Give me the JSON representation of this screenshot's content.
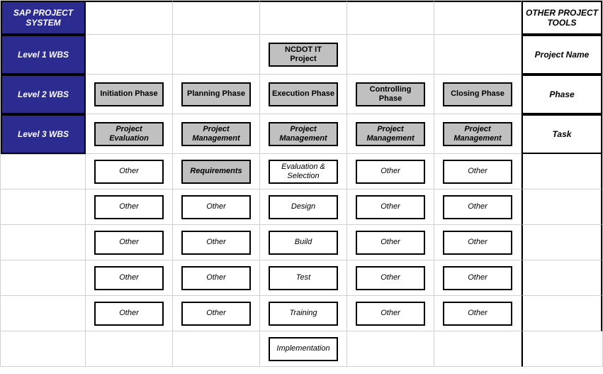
{
  "header": {
    "left": "SAP PROJECT SYSTEM",
    "right": "OTHER PROJECT TOOLS"
  },
  "levels": [
    {
      "label": "Level 1 WBS",
      "right_label": "Project Name",
      "cells": [
        null,
        null,
        {
          "text": "NCDOT IT Project",
          "style": "gray",
          "bold": true
        },
        null,
        null
      ]
    },
    {
      "label": "Level 2 WBS",
      "right_label": "Phase",
      "cells": [
        {
          "text": "Initiation Phase",
          "style": "gray",
          "bold": true
        },
        {
          "text": "Planning Phase",
          "style": "gray",
          "bold": true
        },
        {
          "text": "Execution Phase",
          "style": "gray",
          "bold": true
        },
        {
          "text": "Controlling Phase",
          "style": "gray",
          "bold": true
        },
        {
          "text": "Closing Phase",
          "style": "gray",
          "bold": true
        }
      ]
    },
    {
      "label": "Level 3 WBS",
      "right_label": "Task",
      "cells": [
        {
          "text": "Project Evaluation",
          "style": "gray",
          "italic": true
        },
        {
          "text": "Project Management",
          "style": "gray",
          "italic": true
        },
        {
          "text": "Project Management",
          "style": "gray",
          "italic": true
        },
        {
          "text": "Project Management",
          "style": "gray",
          "italic": true
        },
        {
          "text": "Project Management",
          "style": "gray",
          "italic": true
        }
      ]
    }
  ],
  "task_rows": [
    [
      {
        "text": "Other",
        "style": "white",
        "italic": true
      },
      {
        "text": "Requirements",
        "style": "gray",
        "italic": true
      },
      {
        "text": "Evaluation & Selection",
        "style": "white",
        "italic": true
      },
      {
        "text": "Other",
        "style": "white",
        "italic": true
      },
      {
        "text": "Other",
        "style": "white",
        "italic": true
      }
    ],
    [
      {
        "text": "Other",
        "style": "white",
        "italic": true
      },
      {
        "text": "Other",
        "style": "white",
        "italic": true
      },
      {
        "text": "Design",
        "style": "white",
        "italic": true
      },
      {
        "text": "Other",
        "style": "white",
        "italic": true
      },
      {
        "text": "Other",
        "style": "white",
        "italic": true
      }
    ],
    [
      {
        "text": "Other",
        "style": "white",
        "italic": true
      },
      {
        "text": "Other",
        "style": "white",
        "italic": true
      },
      {
        "text": "Build",
        "style": "white",
        "italic": true
      },
      {
        "text": "Other",
        "style": "white",
        "italic": true
      },
      {
        "text": "Other",
        "style": "white",
        "italic": true
      }
    ],
    [
      {
        "text": "Other",
        "style": "white",
        "italic": true
      },
      {
        "text": "Other",
        "style": "white",
        "italic": true
      },
      {
        "text": "Test",
        "style": "white",
        "italic": true
      },
      {
        "text": "Other",
        "style": "white",
        "italic": true
      },
      {
        "text": "Other",
        "style": "white",
        "italic": true
      }
    ],
    [
      {
        "text": "Other",
        "style": "white",
        "italic": true
      },
      {
        "text": "Other",
        "style": "white",
        "italic": true
      },
      {
        "text": "Training",
        "style": "white",
        "italic": true
      },
      {
        "text": "Other",
        "style": "white",
        "italic": true
      },
      {
        "text": "Other",
        "style": "white",
        "italic": true
      }
    ],
    [
      null,
      null,
      {
        "text": "Implementation",
        "style": "white",
        "italic": true
      },
      null,
      null
    ]
  ],
  "colors": {
    "header_bg": "#2c2b8f",
    "header_fg": "#ffffff",
    "box_gray": "#c0c0c0",
    "box_white": "#ffffff",
    "grid_line": "#d0d0d0",
    "thick_line": "#000000"
  }
}
